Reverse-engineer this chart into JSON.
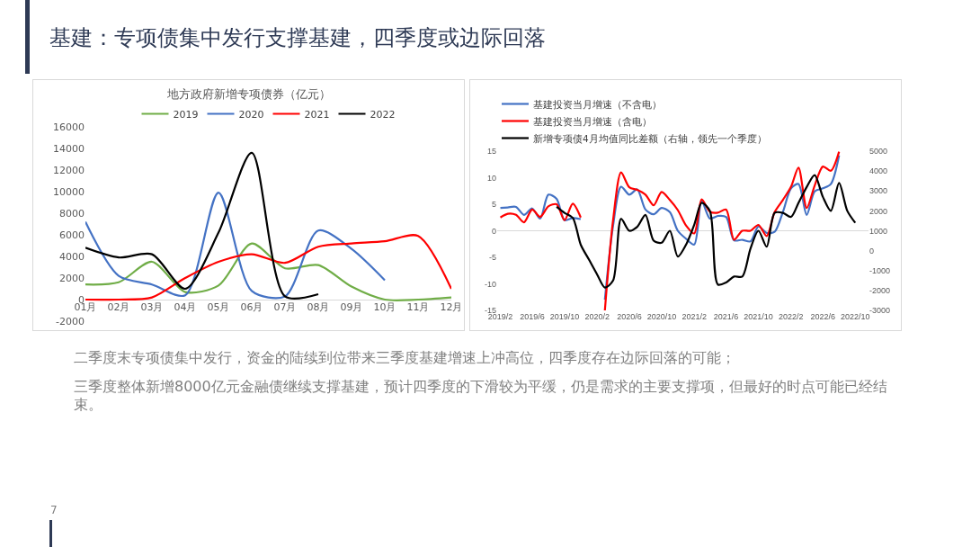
{
  "chart_data": [
    {
      "type": "other",
      "title": "基建：专项债集中发行支撑基建，四季度或边际回落",
      "annotations": [
        "二季度末专项债集中发行，资金的陆续到位带来三季度基建增速上冲高位，四季度存在边际回落的可能；",
        "三季度整体新增8000亿元金融债继续支撑基建，预计四季度的下滑较为平缓，仍是需求的主要支撑项，但最好的时点可能已经结束。",
        "7"
      ]
    },
    {
      "type": "line",
      "title": "地方政府新增专项债券（亿元）",
      "categories": [
        "01月",
        "02月",
        "03月",
        "04月",
        "05月",
        "06月",
        "07月",
        "08月",
        "09月",
        "10月",
        "11月",
        "12月"
      ],
      "ylim": [
        -2000,
        16000
      ],
      "yticks": [
        -2000,
        0,
        2000,
        4000,
        6000,
        8000,
        10000,
        12000,
        14000,
        16000
      ],
      "grid": false,
      "legend": "top",
      "series": [
        {
          "name": "2019",
          "color": "#70ad47",
          "values": [
            1400,
            1600,
            3500,
            700,
            1300,
            5200,
            2900,
            3200,
            1200,
            0,
            0,
            200
          ]
        },
        {
          "name": "2020",
          "color": "#4472c4",
          "values": [
            7200,
            2200,
            1400,
            400,
            9900,
            800,
            300,
            6400,
            4700,
            1800,
            null,
            null
          ]
        },
        {
          "name": "2021",
          "color": "#ff0000",
          "values": [
            0,
            0,
            200,
            2000,
            3500,
            4200,
            3400,
            4900,
            5200,
            5400,
            5900,
            1000
          ]
        },
        {
          "name": "2022",
          "color": "#000000",
          "values": [
            4800,
            3900,
            4200,
            1000,
            6200,
            13600,
            300,
            500,
            null,
            null,
            null,
            null
          ]
        }
      ]
    },
    {
      "type": "line",
      "x": [
        "2019-02",
        "2019-03",
        "2019-04",
        "2019-05",
        "2019-06",
        "2019-07",
        "2019-08",
        "2019-09",
        "2019-10",
        "2019-11",
        "2019-12",
        "2020-01",
        "2020-02",
        "2020-03",
        "2020-04",
        "2020-05",
        "2020-06",
        "2020-07",
        "2020-08",
        "2020-09",
        "2020-10",
        "2020-11",
        "2020-12",
        "2021-01",
        "2021-02",
        "2021-03",
        "2021-04",
        "2021-05",
        "2021-06",
        "2021-07",
        "2021-08",
        "2021-09",
        "2021-10",
        "2021-11",
        "2021-12",
        "2022-01",
        "2022-02",
        "2022-03",
        "2022-04",
        "2022-05",
        "2022-06",
        "2022-07",
        "2022-08"
      ],
      "xlim": [
        "2019-01-20",
        "2022-11-20"
      ],
      "xticks": [
        {
          "value": "2019-02",
          "label": "2019/2"
        },
        {
          "value": "2019-06",
          "label": "2019/6"
        },
        {
          "value": "2019-10",
          "label": "2019/10"
        },
        {
          "value": "2020-02",
          "label": "2020/2"
        },
        {
          "value": "2020-06",
          "label": "2020/6"
        },
        {
          "value": "2020-10",
          "label": "2020/10"
        },
        {
          "value": "2021-02",
          "label": "2021/2"
        },
        {
          "value": "2021-06",
          "label": "2021/6"
        },
        {
          "value": "2021-10",
          "label": "2021/10"
        },
        {
          "value": "2022-02",
          "label": "2022/2"
        },
        {
          "value": "2022-06",
          "label": "2022/6"
        },
        {
          "value": "2022-10",
          "label": "2022/10"
        }
      ],
      "ylim": [
        -15,
        15
      ],
      "yticks": [
        -15,
        -10,
        -5,
        0,
        5,
        10,
        15
      ],
      "y2lim": [
        -3000,
        5000
      ],
      "y2ticks": [
        -3000,
        -2000,
        -1000,
        0,
        1000,
        2000,
        3000,
        4000,
        5000
      ],
      "grid": false,
      "legend": "top left",
      "ref_lines": [
        {
          "axis": "y",
          "value": 0,
          "color": "#d9d9d9"
        }
      ],
      "series": [
        {
          "name": "基建投资当月增速（不含电）",
          "color": "#4472c4",
          "values": [
            4.3,
            4.4,
            4.5,
            3.0,
            4.2,
            2.3,
            6.8,
            6.0,
            2.0,
            2.4,
            2.2,
            null,
            null,
            -13,
            1,
            8.3,
            6.8,
            7.8,
            4.0,
            3.1,
            4.3,
            3.5,
            0.0,
            -1.5,
            -2.6,
            5.6,
            2.3,
            2.8,
            2.6,
            -1.8,
            -1.7,
            -2.0,
            0.8,
            -0.4,
            -0.2,
            3.5,
            8.0,
            8.8,
            3.0,
            7.4,
            8.0,
            8.8,
            14.2
          ]
        },
        {
          "name": "基建投资当月增速（含电）",
          "color": "#ff0000",
          "values": [
            2.5,
            3.2,
            3.0,
            1.6,
            4.0,
            2.6,
            4.6,
            5.0,
            2.0,
            5.1,
            2.5,
            null,
            null,
            -15,
            2,
            11.0,
            8.2,
            7.7,
            6.8,
            4.8,
            7.3,
            5.8,
            3.9,
            1.0,
            -0.5,
            5.9,
            3.6,
            3.4,
            4.0,
            -1.7,
            0.0,
            0.0,
            1.1,
            -1.0,
            3.5,
            5.8,
            8.3,
            11.9,
            4.3,
            8.5,
            12.1,
            11.3,
            14.9
          ]
        },
        {
          "name": "新增专项债4月均值同比差额（右轴，领先一个季度）",
          "color": "#000000",
          "axis": "y2",
          "x": [
            "2019-09",
            "2019-10",
            "2019-11",
            "2019-12",
            "2020-01",
            "2020-02",
            "2020-03",
            "2020-04",
            "2020-05",
            "2020-06",
            "2020-07",
            "2020-08",
            "2020-09",
            "2020-10",
            "2020-11",
            "2020-12",
            "2021-01",
            "2021-02",
            "2021-03",
            "2021-04",
            "2021-05",
            "2021-06",
            "2021-07",
            "2021-08",
            "2021-09",
            "2021-10",
            "2021-11",
            "2021-12",
            "2022-01",
            "2022-02",
            "2022-03",
            "2022-04",
            "2022-05",
            "2022-06",
            "2022-07",
            "2022-08",
            "2022-09",
            "2022-10"
          ],
          "values": [
            2200,
            1900,
            1650,
            300,
            -450,
            -1200,
            -1850,
            -1500,
            1600,
            1000,
            1200,
            1800,
            500,
            400,
            1000,
            -300,
            300,
            1300,
            2400,
            2000,
            -1700,
            -1600,
            -1300,
            -1300,
            100,
            1000,
            200,
            1900,
            1900,
            1700,
            2400,
            3200,
            3800,
            2700,
            2000,
            3400,
            2000,
            1400
          ]
        }
      ]
    }
  ]
}
